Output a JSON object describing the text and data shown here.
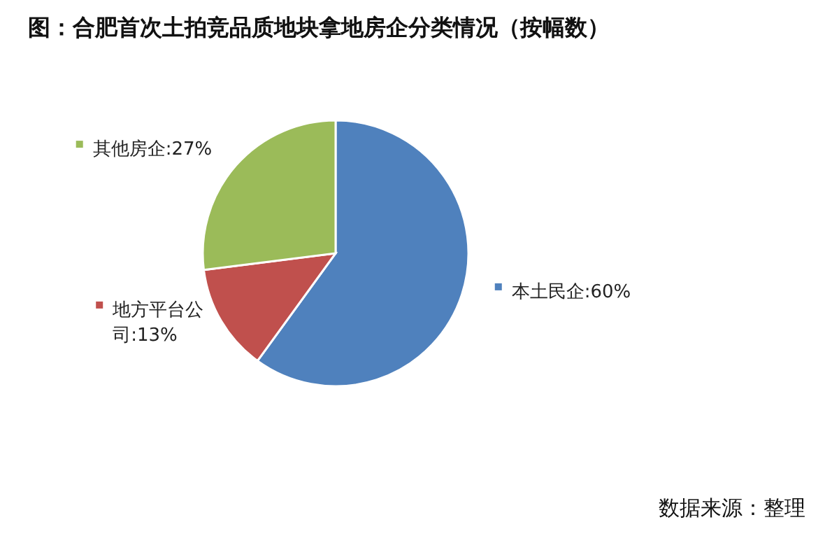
{
  "chart_data": {
    "type": "pie",
    "title": "图：合肥首次土拍竞品质地块拿地房企分类情况（按幅数）",
    "categories": [
      "本土民企",
      "地方平台公司",
      "其他房企"
    ],
    "values": [
      60,
      13,
      27
    ],
    "value_labels": [
      "60%",
      "13%",
      "27%"
    ],
    "colors": [
      "#4f81bd",
      "#c0504d",
      "#9bbb59"
    ],
    "legend": "top right",
    "annotations": [
      "数据来源：整理"
    ]
  }
}
